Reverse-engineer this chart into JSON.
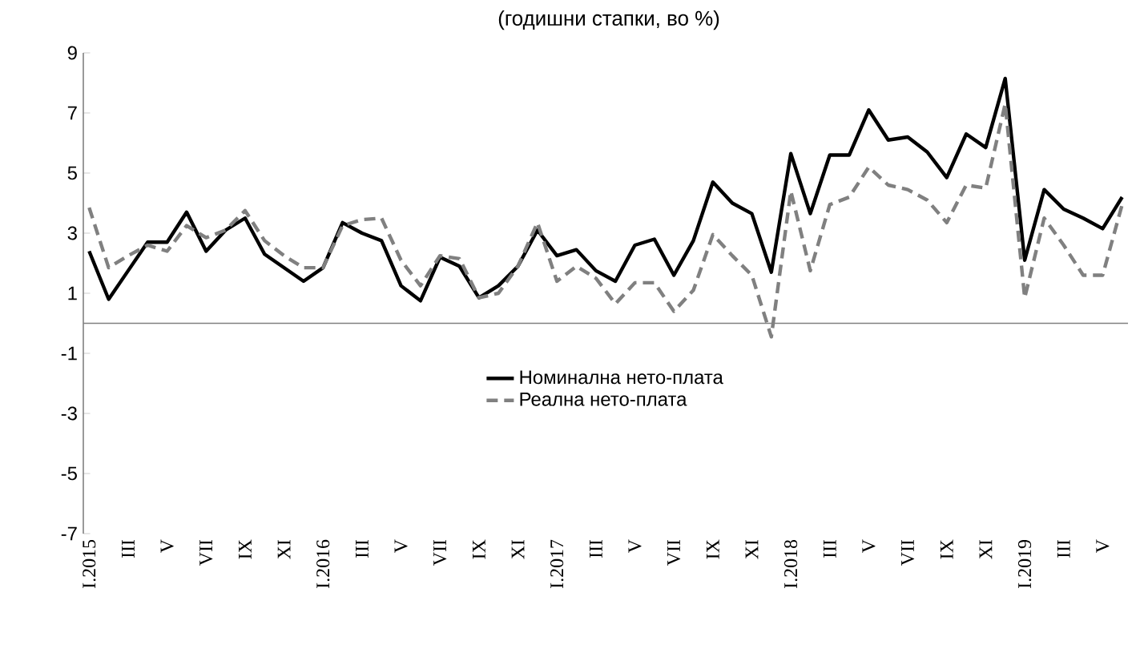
{
  "chart_data": {
    "type": "line",
    "title": "(годишни стапки, во %)",
    "categories": [
      "I.2015",
      null,
      "III",
      null,
      "V",
      null,
      "VII",
      null,
      "IX",
      null,
      "XI",
      null,
      "I.2016",
      null,
      "III",
      null,
      "V",
      null,
      "VII",
      null,
      "IX",
      null,
      "XI",
      null,
      "I.2017",
      null,
      "III",
      null,
      "V",
      null,
      "VII",
      null,
      "IX",
      null,
      "XI",
      null,
      "I.2018",
      null,
      "III",
      null,
      "V",
      null,
      "VII",
      null,
      "IX",
      null,
      "XI",
      null,
      "I.2019",
      null,
      "III",
      null,
      "V",
      null
    ],
    "series": [
      {
        "name": "Номинална нето-плата",
        "color": "#000000",
        "line_style": "solid",
        "values": [
          2.4,
          0.8,
          1.75,
          2.7,
          2.7,
          3.7,
          2.4,
          3.1,
          3.5,
          2.3,
          1.85,
          1.4,
          1.85,
          3.35,
          3.0,
          2.75,
          1.25,
          0.75,
          2.2,
          1.9,
          0.85,
          1.25,
          1.9,
          3.1,
          2.25,
          2.45,
          1.75,
          1.4,
          2.6,
          2.8,
          1.6,
          2.75,
          4.7,
          4.0,
          3.65,
          1.7,
          5.65,
          3.65,
          5.6,
          5.6,
          7.1,
          6.1,
          6.2,
          5.7,
          4.85,
          6.3,
          5.85,
          8.15,
          2.1,
          4.45,
          3.8,
          3.5,
          3.15,
          4.2
        ]
      },
      {
        "name": "Реална нето-плата",
        "color": "#808080",
        "line_style": "dashed",
        "values": [
          3.85,
          1.85,
          2.25,
          2.6,
          2.4,
          3.25,
          2.85,
          3.1,
          3.75,
          2.75,
          2.25,
          1.85,
          1.85,
          3.25,
          3.45,
          3.5,
          2.1,
          1.25,
          2.25,
          2.15,
          0.85,
          1.0,
          1.9,
          3.35,
          1.4,
          1.9,
          1.5,
          0.65,
          1.35,
          1.35,
          0.4,
          1.1,
          2.95,
          2.25,
          1.6,
          -0.45,
          4.4,
          1.75,
          3.95,
          4.2,
          5.2,
          4.6,
          4.45,
          4.1,
          3.35,
          4.6,
          4.5,
          7.3,
          0.85,
          3.5,
          2.6,
          1.6,
          1.6,
          3.95
        ]
      }
    ],
    "ylim": [
      -7,
      9
    ],
    "yticks": [
      -7,
      -5,
      -3,
      -1,
      1,
      3,
      5,
      7,
      9
    ],
    "grid": false,
    "legend": "center",
    "marker": "none"
  }
}
